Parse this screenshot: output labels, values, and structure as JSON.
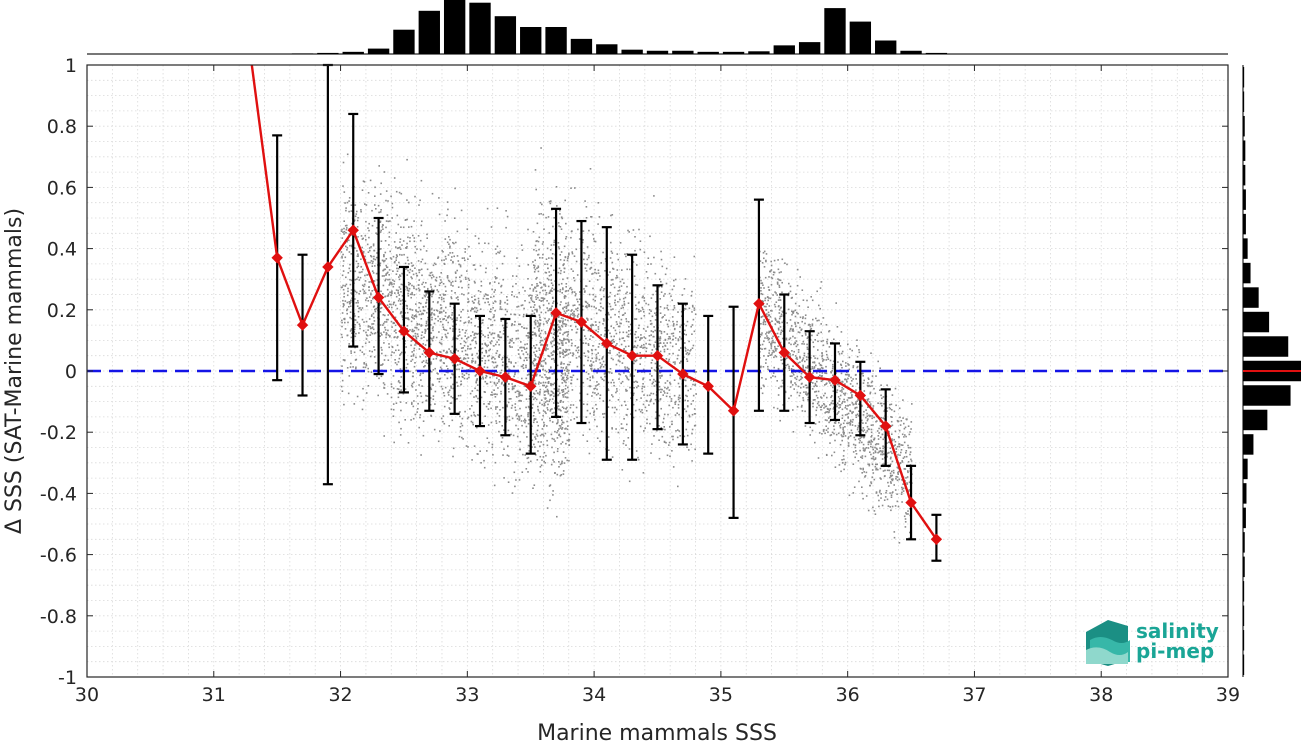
{
  "chart_data": {
    "type": "scatter",
    "xlabel": "Marine mammals SSS",
    "ylabel": "Δ SSS (SAT-Marine mammals)",
    "xlim": [
      30,
      39
    ],
    "ylim": [
      -1,
      1
    ],
    "xticks": [
      30,
      31,
      32,
      33,
      34,
      35,
      36,
      37,
      38,
      39
    ],
    "xtick_labels": [
      "30",
      "31",
      "32",
      "33",
      "34",
      "35",
      "36",
      "37",
      "38",
      "39"
    ],
    "yticks": [
      1,
      0.8,
      0.6,
      0.4,
      0.2,
      0,
      -0.2,
      -0.4,
      -0.6,
      -0.8,
      -1
    ],
    "ytick_labels": [
      "1",
      "0.8",
      "0.6",
      "0.4",
      "0.2",
      "0",
      "-0.2",
      "-0.4",
      "-0.6",
      "-0.8",
      "-1"
    ],
    "grid": true,
    "zero_line": {
      "y": 0,
      "color": "#1414e6",
      "style": "dashed"
    },
    "binned_mean": {
      "color": "#e01010",
      "x": [
        31.5,
        31.7,
        31.9,
        32.1,
        32.3,
        32.5,
        32.7,
        32.9,
        33.1,
        33.3,
        33.5,
        33.7,
        33.9,
        34.1,
        34.3,
        34.5,
        34.7,
        34.9,
        35.1,
        35.3,
        35.5,
        35.7,
        35.9,
        36.1,
        36.3,
        36.5,
        36.7
      ],
      "y": [
        0.37,
        0.15,
        0.34,
        0.46,
        0.24,
        0.13,
        0.06,
        0.04,
        0.0,
        -0.02,
        -0.05,
        0.19,
        0.16,
        0.09,
        0.05,
        0.05,
        -0.01,
        -0.05,
        -0.13,
        0.22,
        0.06,
        -0.02,
        -0.03,
        -0.08,
        -0.18,
        -0.43,
        -0.55
      ],
      "err_low": [
        -0.03,
        -0.08,
        -0.37,
        0.08,
        -0.01,
        -0.07,
        -0.13,
        -0.14,
        -0.18,
        -0.21,
        -0.27,
        -0.15,
        -0.17,
        -0.29,
        -0.29,
        -0.19,
        -0.24,
        -0.27,
        -0.48,
        -0.13,
        -0.13,
        -0.17,
        -0.16,
        -0.21,
        -0.31,
        -0.55,
        -0.62
      ],
      "err_high": [
        0.77,
        0.38,
        1.0,
        0.84,
        0.5,
        0.34,
        0.26,
        0.22,
        0.18,
        0.17,
        0.18,
        0.53,
        0.49,
        0.47,
        0.38,
        0.28,
        0.22,
        0.18,
        0.21,
        0.56,
        0.25,
        0.13,
        0.09,
        0.03,
        -0.06,
        -0.31,
        -0.47
      ],
      "entry_line": {
        "x": [
          31.3,
          31.5
        ],
        "y": [
          1.0,
          0.37
        ]
      }
    },
    "scatter_cloud": {
      "color": "#8c8c8c",
      "clusters": [
        {
          "x_range": [
            32.0,
            33.8
          ],
          "center_y_at_start": 0.3,
          "slope": -0.2,
          "spread": 0.17,
          "n": 2600
        },
        {
          "x_range": [
            33.5,
            34.8
          ],
          "center_y_at_start": 0.25,
          "slope": -0.2,
          "spread": 0.17,
          "n": 1500
        },
        {
          "x_range": [
            35.3,
            36.5
          ],
          "center_y_at_start": 0.2,
          "slope": -0.45,
          "spread": 0.11,
          "n": 1400
        }
      ]
    },
    "top_histogram": {
      "bin_width": 0.2,
      "x_centers": [
        31.5,
        31.7,
        31.9,
        32.1,
        32.3,
        32.5,
        32.7,
        32.9,
        33.1,
        33.3,
        33.5,
        33.7,
        33.9,
        34.1,
        34.3,
        34.5,
        34.7,
        34.9,
        35.1,
        35.3,
        35.5,
        35.7,
        35.9,
        36.1,
        36.3,
        36.5,
        36.7
      ],
      "relative_counts": [
        0.0,
        0.01,
        0.02,
        0.04,
        0.1,
        0.45,
        0.8,
        1.0,
        0.95,
        0.7,
        0.5,
        0.5,
        0.28,
        0.18,
        0.08,
        0.06,
        0.06,
        0.04,
        0.04,
        0.05,
        0.16,
        0.22,
        0.85,
        0.6,
        0.25,
        0.06,
        0.02
      ],
      "color": "#000000"
    },
    "side_histogram": {
      "bin_width": 0.08,
      "y_centers": [
        0.96,
        0.88,
        0.8,
        0.72,
        0.64,
        0.56,
        0.48,
        0.4,
        0.32,
        0.24,
        0.16,
        0.08,
        0.0,
        -0.08,
        -0.16,
        -0.24,
        -0.32,
        -0.4,
        -0.48,
        -0.56,
        -0.64,
        -0.72,
        -0.8,
        -0.88,
        -0.96
      ],
      "relative_counts": [
        0.02,
        0.02,
        0.03,
        0.04,
        0.04,
        0.05,
        0.05,
        0.08,
        0.13,
        0.27,
        0.45,
        0.78,
        1.0,
        0.82,
        0.42,
        0.18,
        0.08,
        0.06,
        0.05,
        0.03,
        0.03,
        0.02,
        0.02,
        0.02,
        0.02
      ],
      "color": "#000000",
      "zero_marker_color": "#e01010"
    }
  },
  "logo": {
    "line1": "salinity",
    "line2": "pi-mep",
    "color": "#1aa596"
  }
}
